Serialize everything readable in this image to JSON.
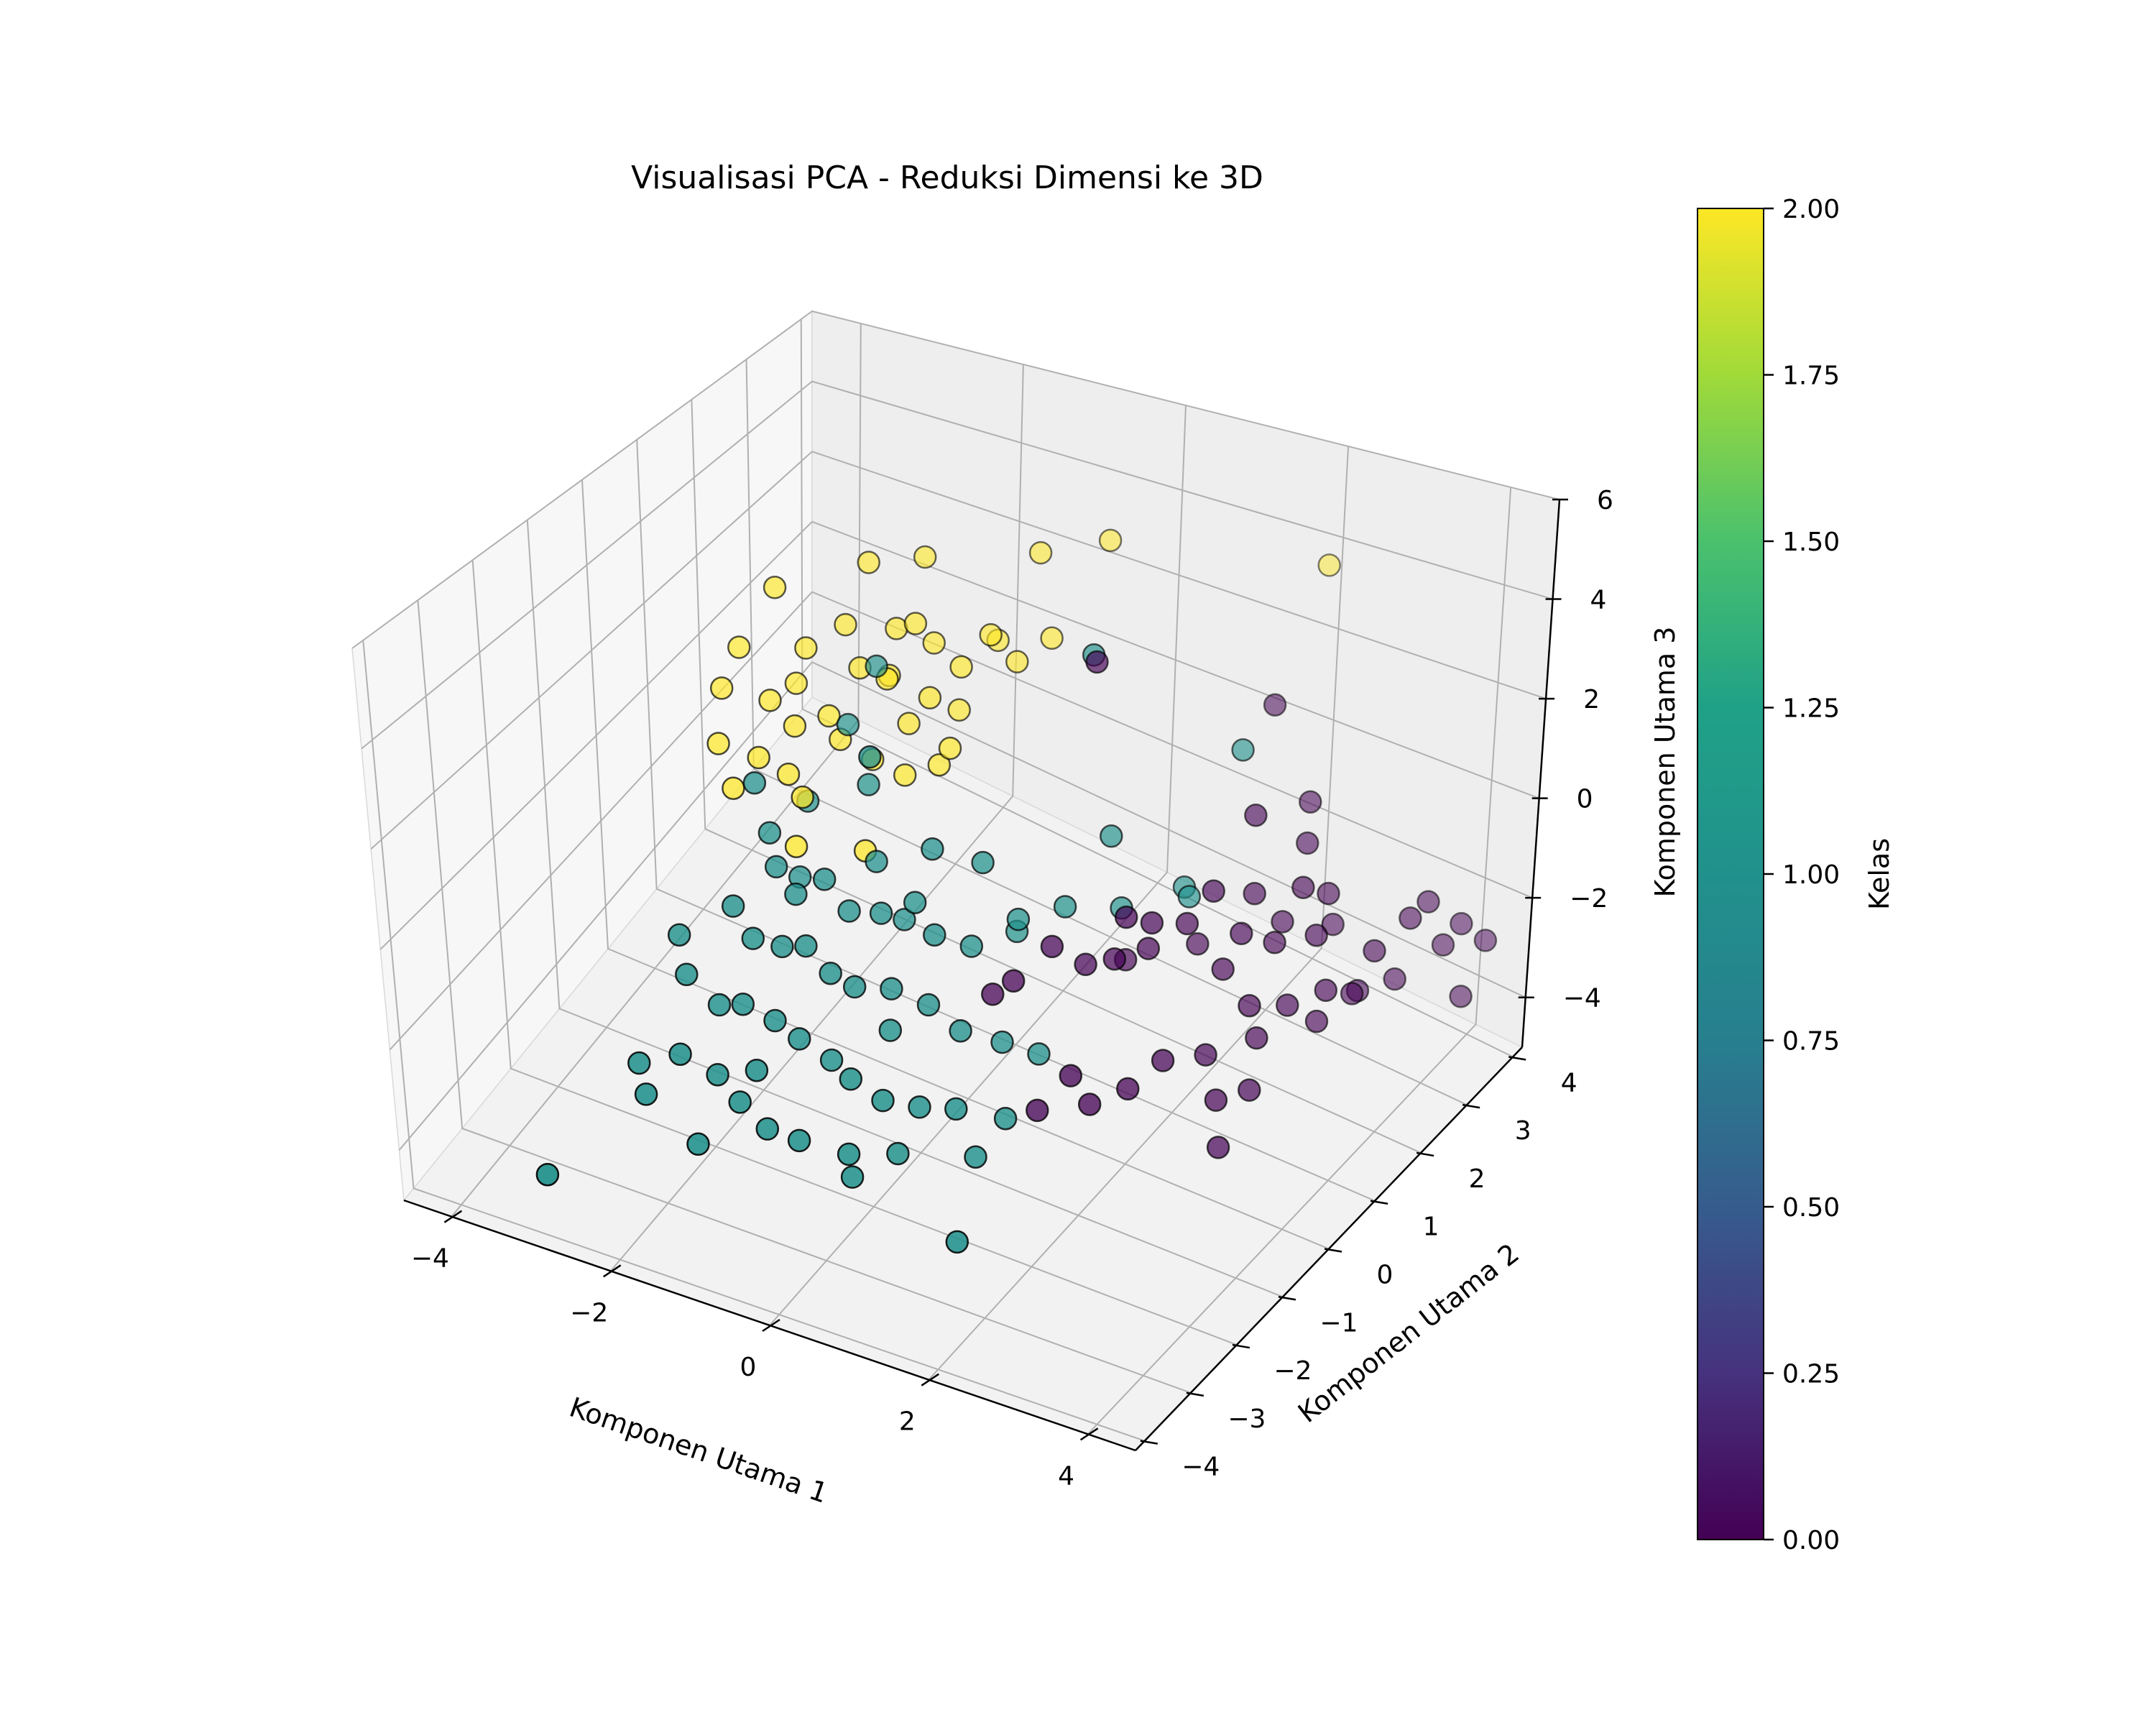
{
  "chart_data": {
    "type": "scatter",
    "title": "Visualisasi PCA - Reduksi Dimensi ke 3D",
    "xlabel": "Komponen Utama 1",
    "ylabel": "Komponen Utama 2",
    "zlabel": "Komponen Utama 3",
    "xlim": [
      -4.6,
      4.6
    ],
    "ylim": [
      -4.2,
      4.2
    ],
    "zlim": [
      -5.0,
      6.0
    ],
    "x_ticks": [
      "−4",
      "−2",
      "0",
      "2",
      "4"
    ],
    "x_tick_values": [
      -4,
      -2,
      0,
      2,
      4
    ],
    "y_ticks": [
      "−4",
      "−3",
      "−2",
      "−1",
      "0",
      "1",
      "2",
      "3",
      "4"
    ],
    "y_tick_values": [
      -4,
      -3,
      -2,
      -1,
      0,
      1,
      2,
      3,
      4
    ],
    "z_ticks": [
      "−4",
      "−2",
      "0",
      "2",
      "4",
      "6"
    ],
    "z_tick_values": [
      -4,
      -2,
      0,
      2,
      4,
      6
    ],
    "grid": true,
    "colorbar": {
      "label": "Kelas",
      "min": 0.0,
      "max": 2.0,
      "ticks": [
        "0.00",
        "0.25",
        "0.50",
        "0.75",
        "1.00",
        "1.25",
        "1.50",
        "1.75",
        "2.00"
      ],
      "tick_values": [
        0,
        0.25,
        0.5,
        0.75,
        1.0,
        1.25,
        1.5,
        1.75,
        2.0
      ],
      "colormap": "viridis"
    },
    "series": [
      {
        "value": 0,
        "color": "#440154",
        "points": [
          [
            2.2,
            2.6,
            2.1
          ],
          [
            1.1,
            0.8,
            4.2
          ],
          [
            2.6,
            1.6,
            1.0
          ],
          [
            2.8,
            2.4,
            0.6
          ],
          [
            2.9,
            2.2,
            0.0
          ],
          [
            3.1,
            1.8,
            -0.4
          ],
          [
            3.3,
            2.0,
            -0.6
          ],
          [
            3.4,
            1.6,
            -1.0
          ],
          [
            3.0,
            1.4,
            -1.2
          ],
          [
            2.7,
            1.2,
            -1.0
          ],
          [
            2.2,
            0.9,
            -0.8
          ],
          [
            1.9,
            0.6,
            -1.2
          ],
          [
            1.6,
            0.4,
            -1.4
          ],
          [
            1.3,
            0.3,
            -1.6
          ],
          [
            1.0,
            0.1,
            -1.2
          ],
          [
            0.7,
            -0.2,
            -1.8
          ],
          [
            0.5,
            -0.3,
            -2.1
          ],
          [
            1.8,
            0.3,
            -0.3
          ],
          [
            2.0,
            0.5,
            -0.5
          ],
          [
            2.4,
            1.1,
            -0.2
          ],
          [
            2.6,
            1.0,
            -1.6
          ],
          [
            3.0,
            0.9,
            -2.0
          ],
          [
            3.3,
            1.2,
            -2.1
          ],
          [
            3.6,
            1.5,
            -1.9
          ],
          [
            3.9,
            2.0,
            -1.4
          ],
          [
            4.1,
            2.4,
            -1.0
          ],
          [
            4.2,
            2.6,
            -0.8
          ],
          [
            4.3,
            2.8,
            -1.8
          ],
          [
            4.0,
            2.3,
            -2.2
          ],
          [
            3.7,
            1.9,
            -2.3
          ],
          [
            3.5,
            1.5,
            -2.6
          ],
          [
            3.1,
            0.9,
            -2.6
          ],
          [
            2.7,
            0.5,
            -2.8
          ],
          [
            2.4,
            0.1,
            -2.7
          ],
          [
            2.2,
            -0.3,
            -3.0
          ],
          [
            1.9,
            -0.6,
            -3.2
          ],
          [
            1.6,
            -0.5,
            -2.9
          ],
          [
            2.9,
            0.4,
            -3.5
          ],
          [
            3.2,
            0.6,
            -3.3
          ],
          [
            4.5,
            2.9,
            -2.8
          ],
          [
            4.6,
            3.2,
            -1.9
          ],
          [
            4.4,
            3.0,
            -1.5
          ],
          [
            1.3,
            -0.7,
            -3.6
          ],
          [
            3.0,
            0.3,
            -4.3
          ],
          [
            2.5,
            1.8,
            -0.9
          ],
          [
            2.8,
            1.9,
            -1.4
          ],
          [
            3.2,
            2.3,
            -1.6
          ],
          [
            2.1,
            1.3,
            -1.7
          ],
          [
            1.5,
            0.8,
            -1.9
          ],
          [
            3.6,
            2.2,
            -2.6
          ]
        ]
      },
      {
        "value": 1,
        "color": "#21918c",
        "points": [
          [
            1.0,
            0.9,
            4.2
          ],
          [
            -0.8,
            -0.6,
            2.5
          ],
          [
            -1.6,
            0.8,
            2.6
          ],
          [
            -1.9,
            0.7,
            1.2
          ],
          [
            -1.4,
            0.3,
            0.6
          ],
          [
            -0.3,
            -0.2,
            0.4
          ],
          [
            0.2,
            0.0,
            0.2
          ],
          [
            1.3,
            0.8,
            0.6
          ],
          [
            2.3,
            1.8,
            2.0
          ],
          [
            -2.2,
            -0.4,
            -0.2
          ],
          [
            -2.0,
            -0.6,
            -0.6
          ],
          [
            -1.7,
            -0.7,
            -0.9
          ],
          [
            -1.4,
            -0.6,
            -0.5
          ],
          [
            -1.1,
            -0.6,
            -1.0
          ],
          [
            -0.7,
            -0.6,
            -0.8
          ],
          [
            -0.4,
            -0.4,
            -0.6
          ],
          [
            -0.1,
            -0.5,
            -1.0
          ],
          [
            0.3,
            -0.4,
            -1.1
          ],
          [
            0.7,
            -0.1,
            -0.6
          ],
          [
            1.1,
            0.2,
            -0.4
          ],
          [
            1.5,
            0.7,
            -0.7
          ],
          [
            2.1,
            1.1,
            -0.5
          ],
          [
            -2.3,
            -1.0,
            -1.2
          ],
          [
            -2.0,
            -1.1,
            -1.6
          ],
          [
            -1.7,
            -1.0,
            -1.7
          ],
          [
            -1.4,
            -1.0,
            -1.5
          ],
          [
            -1.1,
            -1.0,
            -1.9
          ],
          [
            -0.8,
            -1.0,
            -2.0
          ],
          [
            -0.4,
            -0.9,
            -1.9
          ],
          [
            0.0,
            -0.8,
            -2.1
          ],
          [
            0.4,
            -0.8,
            -2.4
          ],
          [
            0.8,
            -0.6,
            -2.6
          ],
          [
            1.2,
            -0.5,
            -2.7
          ],
          [
            -2.6,
            -1.5,
            -2.3
          ],
          [
            -2.2,
            -1.5,
            -2.7
          ],
          [
            -1.9,
            -1.5,
            -2.5
          ],
          [
            -1.5,
            -1.5,
            -2.6
          ],
          [
            -1.2,
            -1.5,
            -2.8
          ],
          [
            -0.8,
            -1.5,
            -3.0
          ],
          [
            -0.5,
            -1.6,
            -3.1
          ],
          [
            -0.1,
            -1.6,
            -3.3
          ],
          [
            0.3,
            -1.5,
            -3.3
          ],
          [
            0.7,
            -1.4,
            -3.2
          ],
          [
            1.2,
            -1.2,
            -3.3
          ],
          [
            -2.4,
            -2.0,
            -3.3
          ],
          [
            -2.0,
            -1.9,
            -3.6
          ],
          [
            -1.6,
            -2.1,
            -3.7
          ],
          [
            -1.2,
            -2.2,
            -3.9
          ],
          [
            -0.8,
            -2.2,
            -3.9
          ],
          [
            -0.3,
            -2.0,
            -4.1
          ],
          [
            0.2,
            -1.8,
            -4.0
          ],
          [
            -0.2,
            -2.1,
            -4.4
          ],
          [
            1.0,
            -1.5,
            -3.9
          ],
          [
            1.3,
            -2.4,
            -4.5
          ],
          [
            -2.6,
            -2.4,
            -3.8
          ],
          [
            -2.8,
            -2.2,
            -3.5
          ],
          [
            -1.9,
            -2.5,
            -4.3
          ],
          [
            -3.4,
            -3.2,
            -5.0
          ],
          [
            -2.5,
            -0.2,
            0.5
          ],
          [
            -2.1,
            0.2,
            -0.1
          ],
          [
            -1.0,
            -0.2,
            -0.3
          ],
          [
            -0.6,
            -0.3,
            -1.2
          ],
          [
            0.5,
            0.2,
            -1.3
          ],
          [
            -1.9,
            -0.3,
            -1.1
          ],
          [
            1.8,
            1.5,
            -0.9
          ],
          [
            -0.3,
            -1.1,
            -2.5
          ],
          [
            -2.8,
            -1.3,
            -1.8
          ],
          [
            -1.5,
            -1.9,
            -3.2
          ]
        ]
      },
      {
        "value": 2,
        "color": "#fde725",
        "points": [
          [
            -3.1,
            1.2,
            3.1
          ],
          [
            -2.2,
            1.6,
            3.8
          ],
          [
            -1.7,
            1.9,
            3.9
          ],
          [
            -0.6,
            2.4,
            4.1
          ],
          [
            0.0,
            2.8,
            4.3
          ],
          [
            -1.5,
            1.4,
            3.0
          ],
          [
            -0.7,
            1.6,
            3.0
          ],
          [
            -0.2,
            2.0,
            2.8
          ],
          [
            2.2,
            3.6,
            4.1
          ],
          [
            -3.3,
            0.8,
            2.0
          ],
          [
            -2.6,
            1.0,
            2.2
          ],
          [
            -2.3,
            1.3,
            2.6
          ],
          [
            -2.0,
            1.1,
            2.0
          ],
          [
            -1.8,
            1.5,
            2.6
          ],
          [
            -1.4,
            1.6,
            2.4
          ],
          [
            -1.0,
            1.5,
            2.2
          ],
          [
            -0.8,
            1.9,
            2.5
          ],
          [
            -0.5,
            1.8,
            2.3
          ],
          [
            -1.7,
            1.2,
            1.9
          ],
          [
            -1.2,
            1.2,
            1.7
          ],
          [
            -0.9,
            1.3,
            1.5
          ],
          [
            -3.4,
            0.6,
            1.2
          ],
          [
            -2.8,
            0.6,
            1.3
          ],
          [
            -2.5,
            0.6,
            0.9
          ],
          [
            -2.2,
            0.8,
            1.1
          ],
          [
            -2.0,
            0.7,
            0.8
          ],
          [
            -1.6,
            0.7,
            0.6
          ],
          [
            -1.4,
            1.1,
            1.1
          ],
          [
            -3.2,
            0.2,
            0.5
          ],
          [
            -2.7,
            0.2,
            0.5
          ],
          [
            -2.4,
            0.3,
            0.2
          ],
          [
            -2.1,
            0.1,
            0.1
          ],
          [
            -1.2,
            0.7,
            0.5
          ],
          [
            -0.9,
            0.9,
            0.7
          ],
          [
            -2.0,
            -0.2,
            -0.6
          ],
          [
            -1.2,
            -0.1,
            -0.3
          ],
          [
            -2.9,
            0.0,
            -0.1
          ],
          [
            -1.6,
            1.0,
            2.1
          ],
          [
            -0.7,
            0.8,
            1.3
          ],
          [
            -2.6,
            0.8,
            1.6
          ]
        ]
      }
    ]
  }
}
